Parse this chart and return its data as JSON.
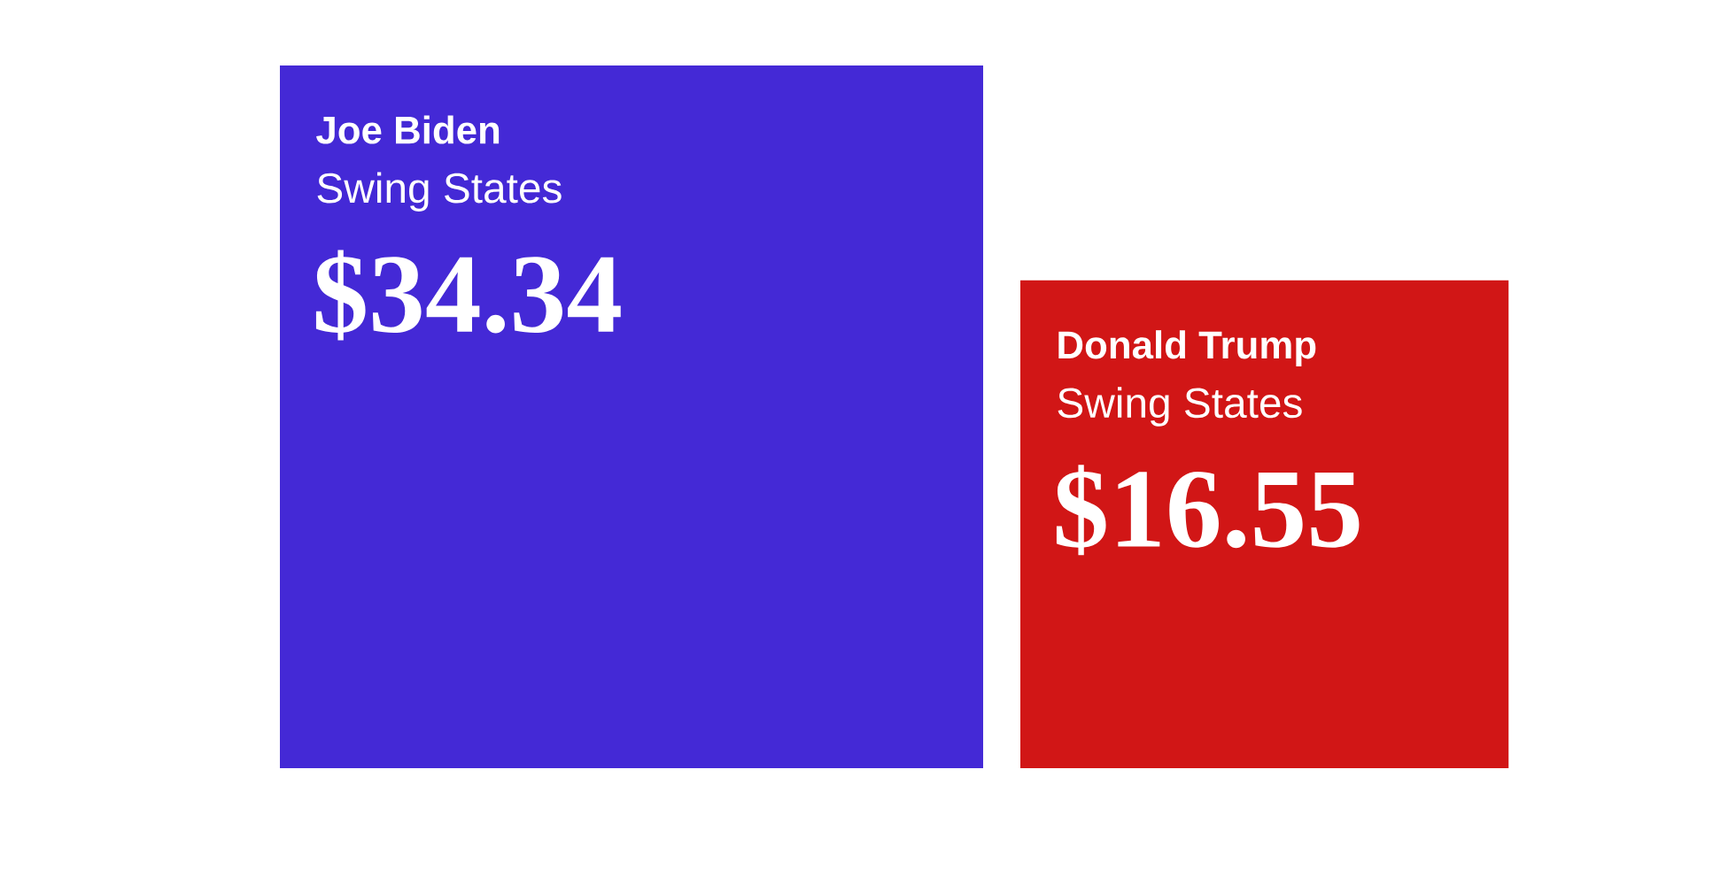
{
  "chart_data": {
    "type": "other",
    "categories": [
      "Joe Biden",
      "Donald Trump"
    ],
    "values": [
      34.34,
      16.55
    ],
    "colors": [
      "#4429d6",
      "#d11616"
    ],
    "value_labels": [
      "$34.34",
      "$16.55"
    ],
    "annotations": [
      "Swing States",
      "Swing States"
    ]
  }
}
